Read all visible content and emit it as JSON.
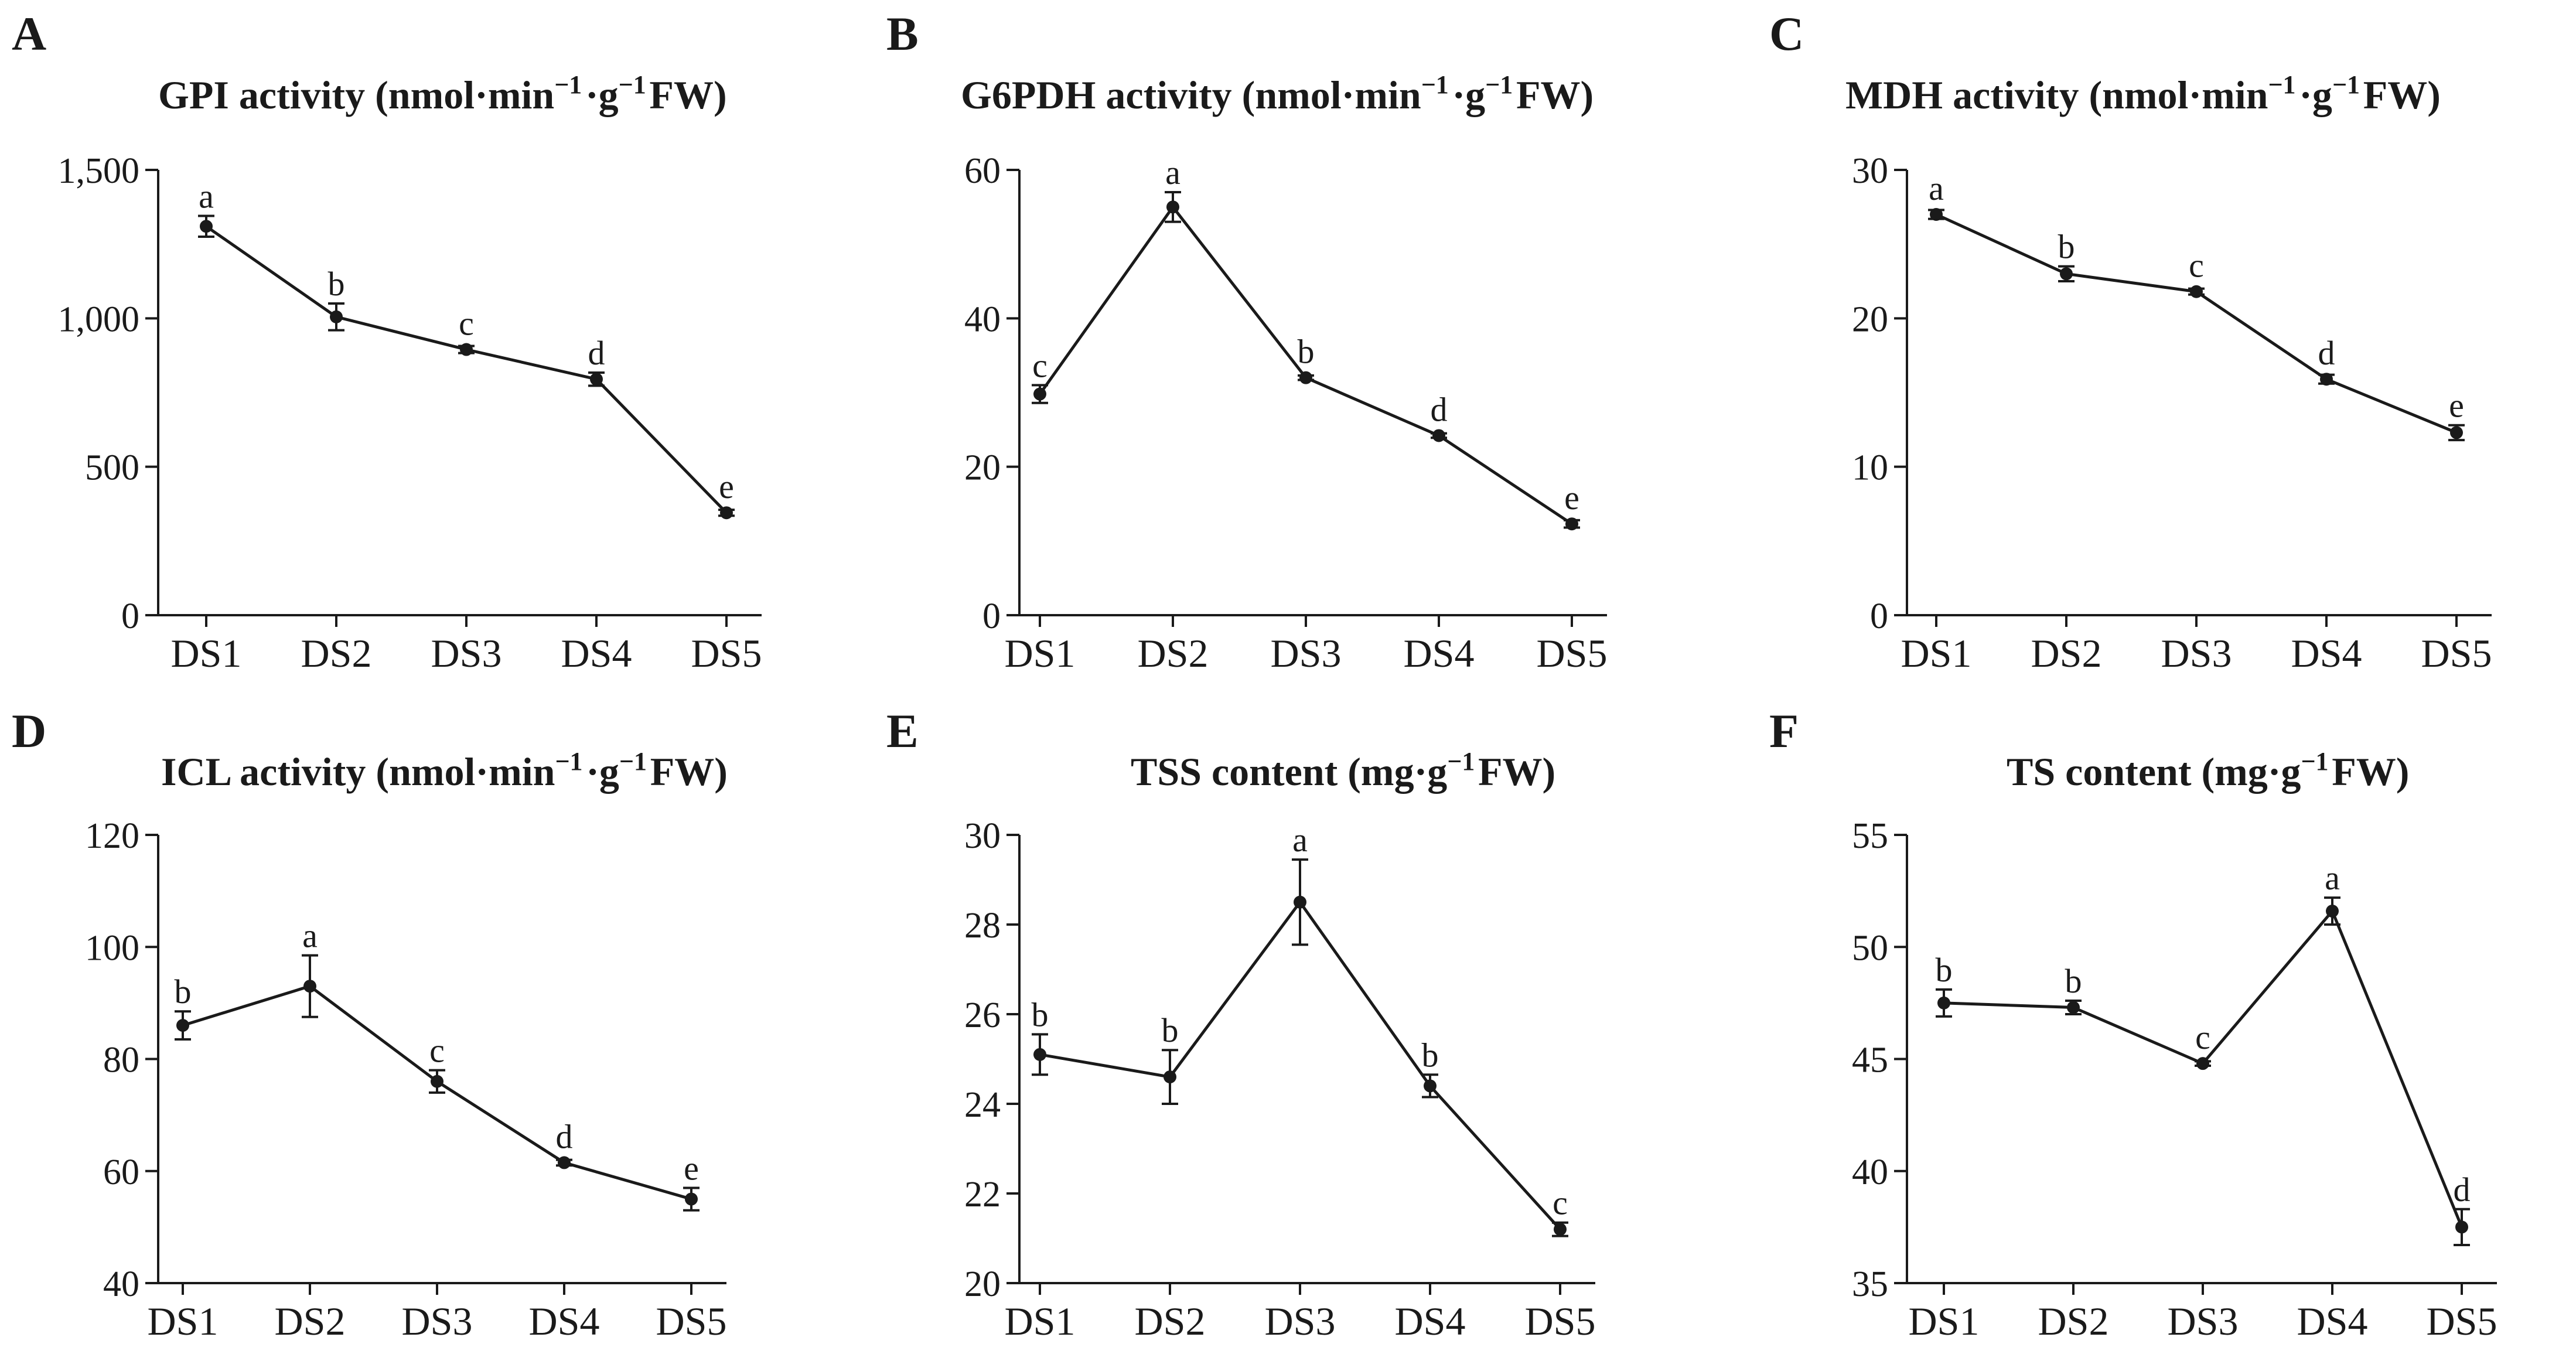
{
  "chart_data": [
    {
      "type": "line",
      "panel": "A",
      "title": "GPI activity (nmol·min",
      "title_sup1": "−1",
      "title_mid": "·g",
      "title_sup2": "−1",
      "title_end": "FW)",
      "categories": [
        "DS1",
        "DS2",
        "DS3",
        "DS4",
        "DS5"
      ],
      "values": [
        1310,
        1005,
        895,
        795,
        345
      ],
      "errors": [
        35,
        45,
        12,
        22,
        10
      ],
      "labels": [
        "a",
        "b",
        "c",
        "d",
        "e"
      ],
      "ylim": [
        0,
        1500
      ],
      "yticks": [
        0,
        500,
        1000,
        1500
      ],
      "ytick_labels": [
        "0",
        "500",
        "1,000",
        "1,500"
      ]
    },
    {
      "type": "line",
      "panel": "B",
      "title": "G6PDH activity  (nmol·min",
      "title_sup1": "−1",
      "title_mid": "·g",
      "title_sup2": "−1",
      "title_end": "FW)",
      "categories": [
        "DS1",
        "DS2",
        "DS3",
        "DS4",
        "DS5"
      ],
      "values": [
        29.8,
        55,
        32,
        24.2,
        12.3
      ],
      "errors": [
        1.2,
        2.0,
        0.3,
        0.3,
        0.5
      ],
      "labels": [
        "c",
        "a",
        "b",
        "d",
        "e"
      ],
      "ylim": [
        0,
        60
      ],
      "yticks": [
        0,
        20,
        40,
        60
      ],
      "ytick_labels": [
        "0",
        "20",
        "40",
        "60"
      ]
    },
    {
      "type": "line",
      "panel": "C",
      "title": "MDH activity  (nmol·min",
      "title_sup1": "−1",
      "title_mid": "·g",
      "title_sup2": "−1",
      "title_end": "FW)",
      "categories": [
        "DS1",
        "DS2",
        "DS3",
        "DS4",
        "DS5"
      ],
      "values": [
        27,
        23,
        21.8,
        15.9,
        12.3
      ],
      "errors": [
        0.3,
        0.5,
        0.2,
        0.3,
        0.5
      ],
      "labels": [
        "a",
        "b",
        "c",
        "d",
        "e"
      ],
      "ylim": [
        0,
        30
      ],
      "yticks": [
        0,
        10,
        20,
        30
      ],
      "ytick_labels": [
        "0",
        "10",
        "20",
        "30"
      ]
    },
    {
      "type": "line",
      "panel": "D",
      "title": "ICL activity (nmol·min",
      "title_sup1": "−1",
      "title_mid": "·g",
      "title_sup2": "−1",
      "title_end": "FW)",
      "categories": [
        "DS1",
        "DS2",
        "DS3",
        "DS4",
        "DS5"
      ],
      "values": [
        86,
        93,
        76,
        61.5,
        55
      ],
      "errors": [
        2.5,
        5.5,
        2.0,
        0.5,
        2.0
      ],
      "labels": [
        "b",
        "a",
        "c",
        "d",
        "e"
      ],
      "ylim": [
        40,
        120
      ],
      "yticks": [
        40,
        60,
        80,
        100,
        120
      ],
      "ytick_labels": [
        "40",
        "60",
        "80",
        "100",
        "120"
      ]
    },
    {
      "type": "line",
      "panel": "E",
      "title": "TSS content (mg·g",
      "title_sup1": "",
      "title_mid": "",
      "title_sup2": "−1",
      "title_end": "FW)",
      "categories": [
        "DS1",
        "DS2",
        "DS3",
        "DS4",
        "DS5"
      ],
      "values": [
        25.1,
        24.6,
        28.5,
        24.4,
        21.2
      ],
      "errors": [
        0.45,
        0.6,
        0.95,
        0.25,
        0.15
      ],
      "labels": [
        "b",
        "b",
        "a",
        "b",
        "c"
      ],
      "ylim": [
        20,
        30
      ],
      "yticks": [
        20,
        22,
        24,
        26,
        28,
        30
      ],
      "ytick_labels": [
        "20",
        "22",
        "24",
        "26",
        "28",
        "30"
      ]
    },
    {
      "type": "line",
      "panel": "F",
      "title": "TS content (mg·g",
      "title_sup1": "",
      "title_mid": "",
      "title_sup2": "−1",
      "title_end": "FW)",
      "categories": [
        "DS1",
        "DS2",
        "DS3",
        "DS4",
        "DS5"
      ],
      "values": [
        47.5,
        47.3,
        44.8,
        51.6,
        37.5
      ],
      "errors": [
        0.6,
        0.3,
        0.1,
        0.6,
        0.8
      ],
      "labels": [
        "b",
        "b",
        "c",
        "a",
        "d"
      ],
      "ylim": [
        35,
        55
      ],
      "yticks": [
        35,
        40,
        45,
        50,
        55
      ],
      "ytick_labels": [
        "35",
        "40",
        "45",
        "50",
        "55"
      ]
    }
  ]
}
